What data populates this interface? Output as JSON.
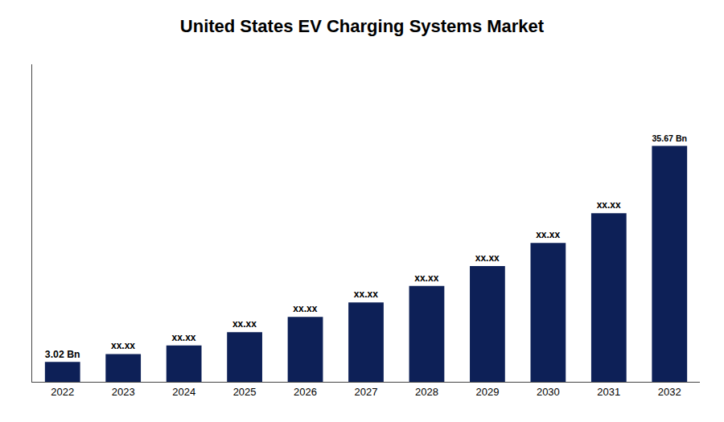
{
  "chart_data": {
    "type": "bar",
    "title": "United States EV Charging Systems Market",
    "categories": [
      "2022",
      "2023",
      "2024",
      "2025",
      "2026",
      "2027",
      "2028",
      "2029",
      "2030",
      "2031",
      "2032"
    ],
    "values": [
      3.02,
      4.2,
      5.5,
      7.5,
      9.8,
      12.0,
      14.5,
      17.5,
      21.0,
      25.5,
      35.67
    ],
    "value_labels": [
      "3.02 Bn",
      "xx.xx",
      "xx.xx",
      "xx.xx",
      "xx.xx",
      "xx.xx",
      "xx.xx",
      "xx.xx",
      "xx.xx",
      "xx.xx",
      "35.67 Bn"
    ],
    "color": "#0d2057",
    "ylim": [
      0,
      48
    ],
    "grid": false,
    "tick_labels": "x"
  }
}
